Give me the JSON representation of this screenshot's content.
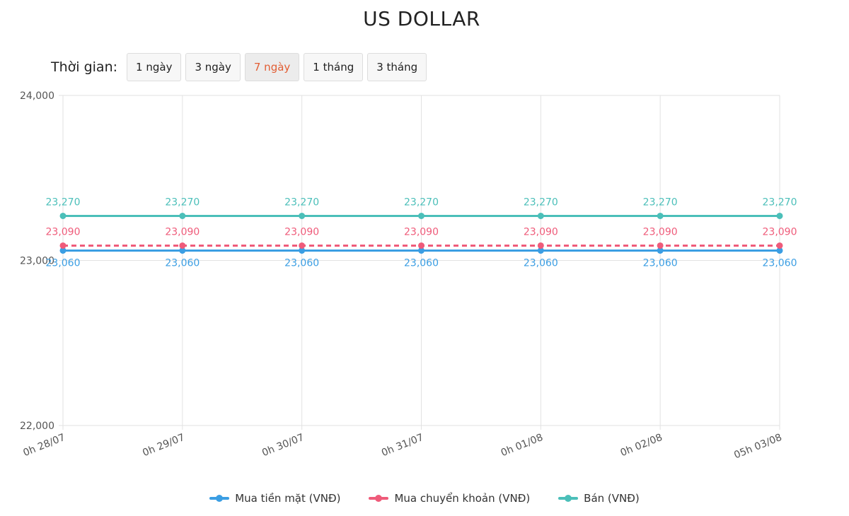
{
  "page": {
    "title": "US DOLLAR"
  },
  "time_filter": {
    "label": "Thời gian:",
    "options": [
      "1 ngày",
      "3 ngày",
      "7 ngày",
      "1 tháng",
      "3 tháng"
    ],
    "selected_index": 2
  },
  "colors": {
    "active_option": "#e25d33",
    "cash_buy": "#3b9ee3",
    "transfer_buy": "#ef5b7a",
    "sell": "#4bbfb9",
    "grid": "#e2e2e2"
  },
  "chart_data": {
    "type": "line",
    "title": "",
    "xlabel": "",
    "ylabel": "",
    "categories": [
      "0h 28/07",
      "0h 29/07",
      "0h 30/07",
      "0h 31/07",
      "0h 01/08",
      "0h 02/08",
      "05h 03/08"
    ],
    "ylim": [
      22000,
      24000
    ],
    "yticks": [
      "22,000",
      "23,000",
      "24,000"
    ],
    "grid": true,
    "legend_position": "bottom",
    "series": [
      {
        "name": "Mua tiền mặt (VNĐ)",
        "color": "#3b9ee3",
        "dashed": false,
        "label_position": "below",
        "values": [
          23060,
          23060,
          23060,
          23060,
          23060,
          23060,
          23060
        ],
        "labels": [
          "23,060",
          "23,060",
          "23,060",
          "23,060",
          "23,060",
          "23,060",
          "23,060"
        ]
      },
      {
        "name": "Mua chuyển khoản (VNĐ)",
        "color": "#ef5b7a",
        "dashed": true,
        "label_position": "above",
        "values": [
          23090,
          23090,
          23090,
          23090,
          23090,
          23090,
          23090
        ],
        "labels": [
          "23,090",
          "23,090",
          "23,090",
          "23,090",
          "23,090",
          "23,090",
          "23,090"
        ]
      },
      {
        "name": "Bán (VNĐ)",
        "color": "#4bbfb9",
        "dashed": false,
        "label_position": "above",
        "values": [
          23270,
          23270,
          23270,
          23270,
          23270,
          23270,
          23270
        ],
        "labels": [
          "23,270",
          "23,270",
          "23,270",
          "23,270",
          "23,270",
          "23,270",
          "23,270"
        ]
      }
    ]
  }
}
